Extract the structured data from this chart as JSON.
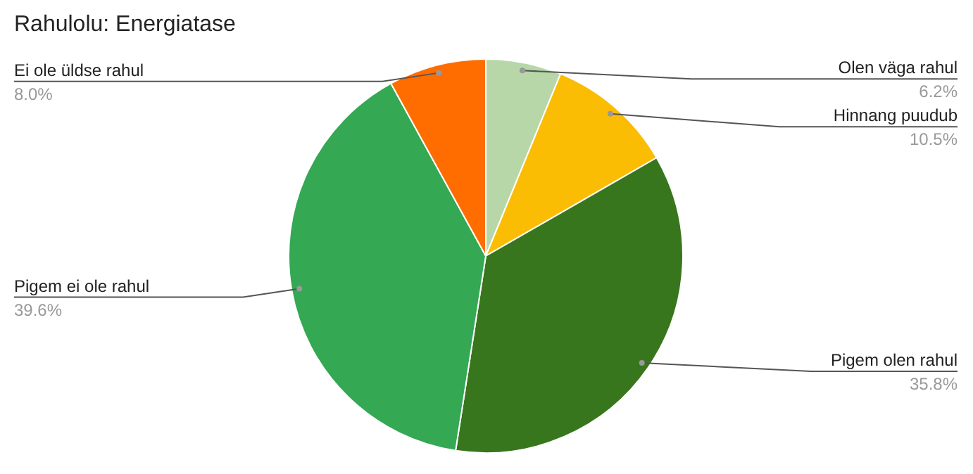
{
  "chart_data": {
    "type": "pie",
    "title": "Rahulolu: Energiatase",
    "categories": [
      "Olen väga rahul",
      "Hinnang puudub",
      "Pigem olen rahul",
      "Pigem ei ole rahul",
      "Ei ole üldse rahul"
    ],
    "values": [
      6.2,
      10.5,
      35.8,
      39.6,
      8.0
    ],
    "value_labels": [
      "6.2%",
      "10.5%",
      "35.8%",
      "39.6%",
      "8.0%"
    ],
    "colors": [
      "#b7d7a8",
      "#fbbc04",
      "#38761d",
      "#34a853",
      "#ff6d01"
    ]
  }
}
